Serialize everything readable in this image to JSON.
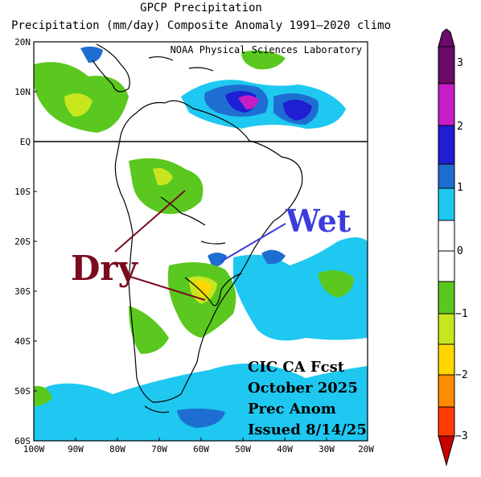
{
  "header": {
    "title": "GPCP Precipitation",
    "subtitle": "Precipitation (mm/day) Composite Anomaly 1991–2020 climo"
  },
  "map": {
    "credit": "NOAA Physical Sciences Laboratory",
    "lat_labels": [
      "20N",
      "10N",
      "EQ",
      "10S",
      "20S",
      "30S",
      "40S",
      "50S",
      "60S"
    ],
    "lon_labels": [
      "100W",
      "90W",
      "80W",
      "70W",
      "60W",
      "50W",
      "40W",
      "30W",
      "20W"
    ],
    "annotation_dry": "Dry",
    "annotation_wet": "Wet",
    "forecast_note": [
      "CIC CA Fcst",
      "October 2025",
      "Prec Anom",
      "Issued 8/14/25"
    ]
  },
  "colorbar": {
    "tick_labels": [
      "3",
      "2",
      "1",
      "0",
      "−1",
      "−2",
      "−3"
    ],
    "colors": [
      "#6a0a6a",
      "#c81ec8",
      "#1e1ed2",
      "#1e6ed2",
      "#1ec8f0",
      "#ffffff",
      "#ffffff",
      "#5ac81e",
      "#c8e61e",
      "#ffd700",
      "#ff8c00",
      "#ff3c00"
    ],
    "dry_color": "#7a0a1e",
    "wet_color": "#3c3cdc"
  }
}
